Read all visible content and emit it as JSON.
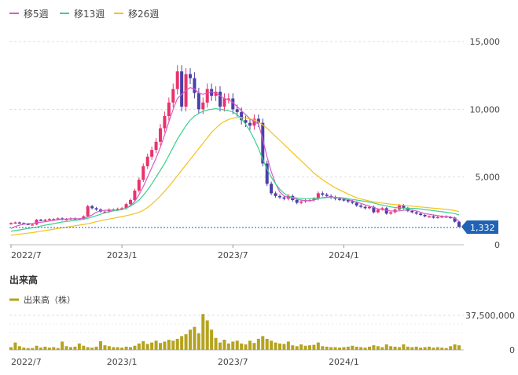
{
  "legend": [
    {
      "label": "移5週",
      "color": "#d85ac6"
    },
    {
      "label": "移13週",
      "color": "#3ccf8e"
    },
    {
      "label": "移26週",
      "color": "#f2c21b"
    }
  ],
  "volume_title": "出来高",
  "volume_legend": {
    "label": "出来高（株）",
    "color": "#b5a31f"
  },
  "last_price_badge": "1,332",
  "colors": {
    "up": "#e8336b",
    "down": "#4b3fa8",
    "badge": "#1f63b5",
    "grid": "#dddddd",
    "volume": "#b5a31f"
  },
  "chart_data": [
    {
      "type": "candlestick",
      "title": "",
      "x_tick_labels": [
        "2022/7",
        "2023/1",
        "2023/7",
        "2024/1"
      ],
      "x_tick_weeks": [
        0,
        26,
        52,
        78
      ],
      "ylim": [
        0,
        15000
      ],
      "y_ticks": [
        0,
        5000,
        10000,
        15000
      ],
      "y_tick_labels": [
        "0",
        "5,000",
        "10,000",
        "15,000"
      ],
      "gridlines": true,
      "last_price": 1332,
      "close": [
        1600,
        1650,
        1600,
        1550,
        1500,
        1500,
        1850,
        1800,
        1850,
        1900,
        1900,
        1950,
        1850,
        1900,
        1950,
        1900,
        1900,
        2100,
        2850,
        2700,
        2600,
        2450,
        2450,
        2600,
        2600,
        2650,
        2700,
        3000,
        3300,
        4000,
        4800,
        5800,
        6500,
        7000,
        7600,
        8600,
        9500,
        10500,
        11500,
        12800,
        10200,
        12600,
        12300,
        11200,
        10000,
        10500,
        11500,
        11000,
        11300,
        10200,
        10800,
        10800,
        10000,
        9800,
        9200,
        9000,
        8800,
        9300,
        9000,
        6000,
        4500,
        3800,
        3600,
        3500,
        3400,
        3600,
        3300,
        3100,
        3200,
        3300,
        3300,
        3400,
        3800,
        3700,
        3600,
        3500,
        3400,
        3350,
        3300,
        3200,
        3100,
        2900,
        2800,
        2700,
        2800,
        2400,
        2600,
        2700,
        2300,
        2400,
        2600,
        2900,
        2700,
        2500,
        2400,
        2300,
        2200,
        2100,
        2100,
        2000,
        2050,
        2100,
        2050,
        2000,
        1700,
        1332
      ],
      "moving_averages": [
        {
          "name": "移5週",
          "values": [
            1200,
            1350,
            1450,
            1520,
            1560,
            1580,
            1620,
            1660,
            1700,
            1750,
            1800,
            1850,
            1880,
            1900,
            1910,
            1920,
            1930,
            1950,
            2050,
            2200,
            2400,
            2500,
            2550,
            2550,
            2550,
            2560,
            2600,
            2700,
            2900,
            3200,
            3700,
            4300,
            5000,
            5700,
            6400,
            7200,
            8100,
            9100,
            10000,
            10800,
            11100,
            11400,
            11600,
            11500,
            11200,
            11100,
            11200,
            11300,
            11200,
            11000,
            10800,
            10700,
            10500,
            10200,
            9900,
            9600,
            9300,
            9100,
            8900,
            7800,
            6500,
            5400,
            4500,
            3900,
            3600,
            3500,
            3450,
            3350,
            3300,
            3250,
            3250,
            3300,
            3400,
            3480,
            3520,
            3530,
            3500,
            3450,
            3400,
            3330,
            3250,
            3150,
            3050,
            2950,
            2850,
            2750,
            2650,
            2600,
            2550,
            2500,
            2480,
            2500,
            2550,
            2580,
            2560,
            2500,
            2400,
            2300,
            2250,
            2200,
            2150,
            2100,
            2080,
            2050,
            1950,
            1750
          ],
          "color": "#d85ac6"
        },
        {
          "name": "移13週",
          "values": [
            1000,
            1050,
            1100,
            1150,
            1200,
            1250,
            1300,
            1380,
            1450,
            1500,
            1560,
            1620,
            1680,
            1720,
            1760,
            1800,
            1840,
            1880,
            1950,
            2050,
            2150,
            2250,
            2350,
            2430,
            2500,
            2550,
            2600,
            2700,
            2850,
            3050,
            3300,
            3650,
            4050,
            4500,
            5000,
            5500,
            6000,
            6600,
            7200,
            7800,
            8300,
            8800,
            9200,
            9500,
            9700,
            9850,
            9950,
            10000,
            10050,
            10000,
            9950,
            9900,
            9800,
            9600,
            9300,
            8900,
            8400,
            7800,
            7100,
            6300,
            5600,
            5000,
            4500,
            4100,
            3800,
            3600,
            3500,
            3450,
            3420,
            3400,
            3400,
            3420,
            3440,
            3460,
            3480,
            3490,
            3490,
            3480,
            3450,
            3400,
            3350,
            3300,
            3250,
            3200,
            3150,
            3080,
            3000,
            2930,
            2870,
            2800,
            2750,
            2720,
            2700,
            2700,
            2690,
            2670,
            2640,
            2600,
            2560,
            2520,
            2480,
            2440,
            2400,
            2360,
            2300,
            2200
          ],
          "color": "#3ccf8e"
        },
        {
          "name": "移26週",
          "values": [
            700,
            740,
            780,
            820,
            860,
            900,
            950,
            1000,
            1050,
            1100,
            1150,
            1200,
            1250,
            1300,
            1350,
            1400,
            1450,
            1500,
            1550,
            1620,
            1700,
            1770,
            1840,
            1900,
            1960,
            2020,
            2080,
            2150,
            2220,
            2300,
            2400,
            2550,
            2750,
            3000,
            3300,
            3600,
            3950,
            4300,
            4700,
            5100,
            5500,
            5900,
            6300,
            6700,
            7100,
            7500,
            7900,
            8300,
            8600,
            8900,
            9100,
            9250,
            9350,
            9400,
            9400,
            9350,
            9300,
            9200,
            9050,
            8850,
            8600,
            8300,
            8000,
            7700,
            7400,
            7100,
            6800,
            6500,
            6200,
            5900,
            5600,
            5300,
            5050,
            4800,
            4600,
            4400,
            4200,
            4050,
            3900,
            3750,
            3600,
            3480,
            3380,
            3300,
            3230,
            3170,
            3120,
            3080,
            3040,
            3000,
            2970,
            2940,
            2910,
            2880,
            2850,
            2820,
            2790,
            2760,
            2730,
            2700,
            2670,
            2640,
            2610,
            2580,
            2520,
            2450
          ],
          "color": "#f2c21b"
        }
      ]
    },
    {
      "type": "bar",
      "title": "出来高",
      "series_name": "出来高（株）",
      "ylim": [
        0,
        37500000
      ],
      "y_ticks": [
        0,
        37500000
      ],
      "y_tick_labels": [
        "0",
        "37,500,000"
      ],
      "x_tick_labels": [
        "2022/7",
        "2023/1",
        "2023/7",
        "2024/1"
      ],
      "x_tick_weeks": [
        0,
        26,
        52,
        78
      ],
      "values": [
        3000000,
        8000000,
        4000000,
        2500000,
        2000000,
        2000000,
        4500000,
        2500000,
        3500000,
        2500000,
        3000000,
        2000000,
        9000000,
        4000000,
        3000000,
        3500000,
        7000000,
        4500000,
        3000000,
        2500000,
        3500000,
        9500000,
        5000000,
        4000000,
        3000000,
        3000000,
        2500000,
        3500000,
        3000000,
        4500000,
        7000000,
        9500000,
        6500000,
        8000000,
        10000000,
        7500000,
        9000000,
        11000000,
        10000000,
        12000000,
        15000000,
        17000000,
        22000000,
        25000000,
        18000000,
        39000000,
        32000000,
        22000000,
        13000000,
        8000000,
        11000000,
        7000000,
        9000000,
        10000000,
        7000000,
        6000000,
        10000000,
        7500000,
        12000000,
        15000000,
        12000000,
        10000000,
        8000000,
        7000000,
        6500000,
        9000000,
        5000000,
        4000000,
        6000000,
        4500000,
        5000000,
        5500000,
        8000000,
        4000000,
        3500000,
        3000000,
        3000000,
        2500000,
        3000000,
        3500000,
        4500000,
        3500000,
        3000000,
        2500000,
        3500000,
        5000000,
        4000000,
        3000000,
        6000000,
        4000000,
        3500000,
        3000000,
        6000000,
        3500000,
        3000000,
        3500000,
        2500000,
        3000000,
        3500000,
        2500000,
        3000000,
        2500000,
        2000000,
        4000000,
        6000000,
        5000000
      ]
    }
  ]
}
